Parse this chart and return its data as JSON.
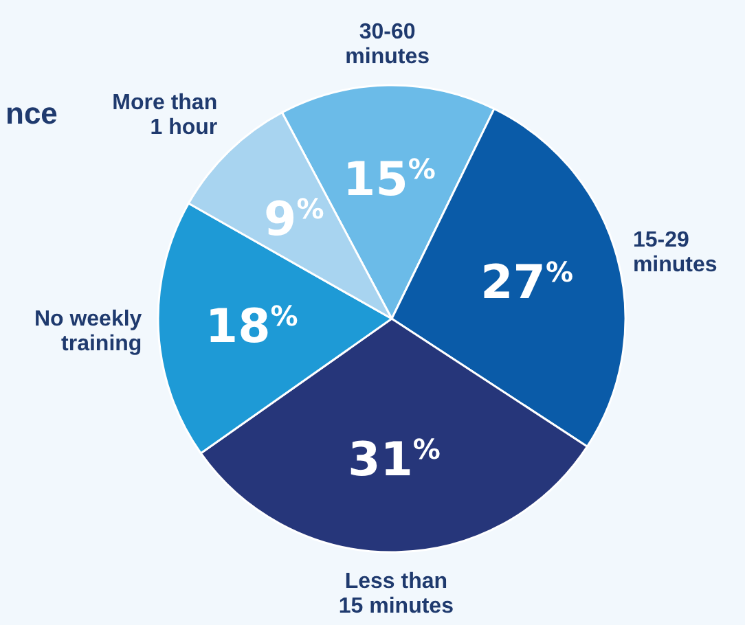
{
  "chart_data": {
    "type": "pie",
    "title": "nce",
    "categories": [
      "30-60 minutes",
      "15-29 minutes",
      "Less than 15 minutes",
      "No weekly training",
      "More than 1 hour"
    ],
    "values": [
      15,
      27,
      31,
      18,
      9
    ],
    "value_labels": [
      "15$^{%}$",
      "27$^{%}$",
      "31$^{%}$",
      "18$^{%}$",
      "9$^{%}$"
    ],
    "colors": [
      "#6bbbe8",
      "#0a5ba8",
      "#26367a",
      "#1e9ad6",
      "#a8d4f0"
    ]
  }
}
